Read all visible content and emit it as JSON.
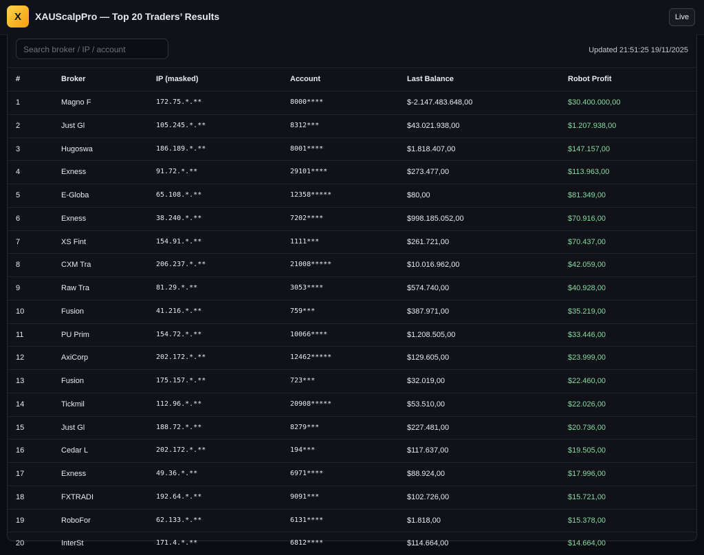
{
  "header": {
    "logo": "X",
    "title": "XAUScalpPro — Top 20 Traders’ Results",
    "live": "Live"
  },
  "toolbar": {
    "search_placeholder": "Search broker / IP / account",
    "updated": "Updated 21:51:25 19/11/2025"
  },
  "table": {
    "columns": [
      "#",
      "Broker",
      "IP (masked)",
      "Account",
      "Last Balance",
      "Robot Profit"
    ],
    "rows": [
      [
        "1",
        "Magno F",
        "172.75.*.**",
        "8000****",
        "$-2.147.483.648,00",
        "$30.400.000,00"
      ],
      [
        "2",
        "Just Gl",
        "105.245.*.**",
        "8312***",
        "$43.021.938,00",
        "$1.207.938,00"
      ],
      [
        "3",
        "Hugoswa",
        "186.189.*.**",
        "8001****",
        "$1.818.407,00",
        "$147.157,00"
      ],
      [
        "4",
        "Exness",
        "91.72.*.**",
        "29101****",
        "$273.477,00",
        "$113.963,00"
      ],
      [
        "5",
        "E-Globa",
        "65.108.*.**",
        "12358*****",
        "$80,00",
        "$81.349,00"
      ],
      [
        "6",
        "Exness",
        "38.240.*.**",
        "7202****",
        "$998.185.052,00",
        "$70.916,00"
      ],
      [
        "7",
        "XS Fint",
        "154.91.*.**",
        "1111***",
        "$261.721,00",
        "$70.437,00"
      ],
      [
        "8",
        "CXM Tra",
        "206.237.*.**",
        "21008*****",
        "$10.016.962,00",
        "$42.059,00"
      ],
      [
        "9",
        "Raw Tra",
        "81.29.*.**",
        "3053****",
        "$574.740,00",
        "$40.928,00"
      ],
      [
        "10",
        "Fusion",
        "41.216.*.**",
        "759***",
        "$387.971,00",
        "$35.219,00"
      ],
      [
        "11",
        "PU Prim",
        "154.72.*.**",
        "10066****",
        "$1.208.505,00",
        "$33.446,00"
      ],
      [
        "12",
        "AxiCorp",
        "202.172.*.**",
        "12462*****",
        "$129.605,00",
        "$23.999,00"
      ],
      [
        "13",
        "Fusion",
        "175.157.*.**",
        "723***",
        "$32.019,00",
        "$22.460,00"
      ],
      [
        "14",
        "Tickmil",
        "112.96.*.**",
        "20908*****",
        "$53.510,00",
        "$22.026,00"
      ],
      [
        "15",
        "Just Gl",
        "188.72.*.**",
        "8279***",
        "$227.481,00",
        "$20.736,00"
      ],
      [
        "16",
        "Cedar L",
        "202.172.*.**",
        "194***",
        "$117.637,00",
        "$19.505,00"
      ],
      [
        "17",
        "Exness",
        "49.36.*.**",
        "6971****",
        "$88.924,00",
        "$17.996,00"
      ],
      [
        "18",
        "FXTRADI",
        "192.64.*.**",
        "9091***",
        "$102.726,00",
        "$15.721,00"
      ],
      [
        "19",
        "RoboFor",
        "62.133.*.**",
        "6131****",
        "$1.818,00",
        "$15.378,00"
      ],
      [
        "20",
        "InterSt",
        "171.4.*.**",
        "6812****",
        "$114.664,00",
        "$14.664,00"
      ]
    ]
  }
}
